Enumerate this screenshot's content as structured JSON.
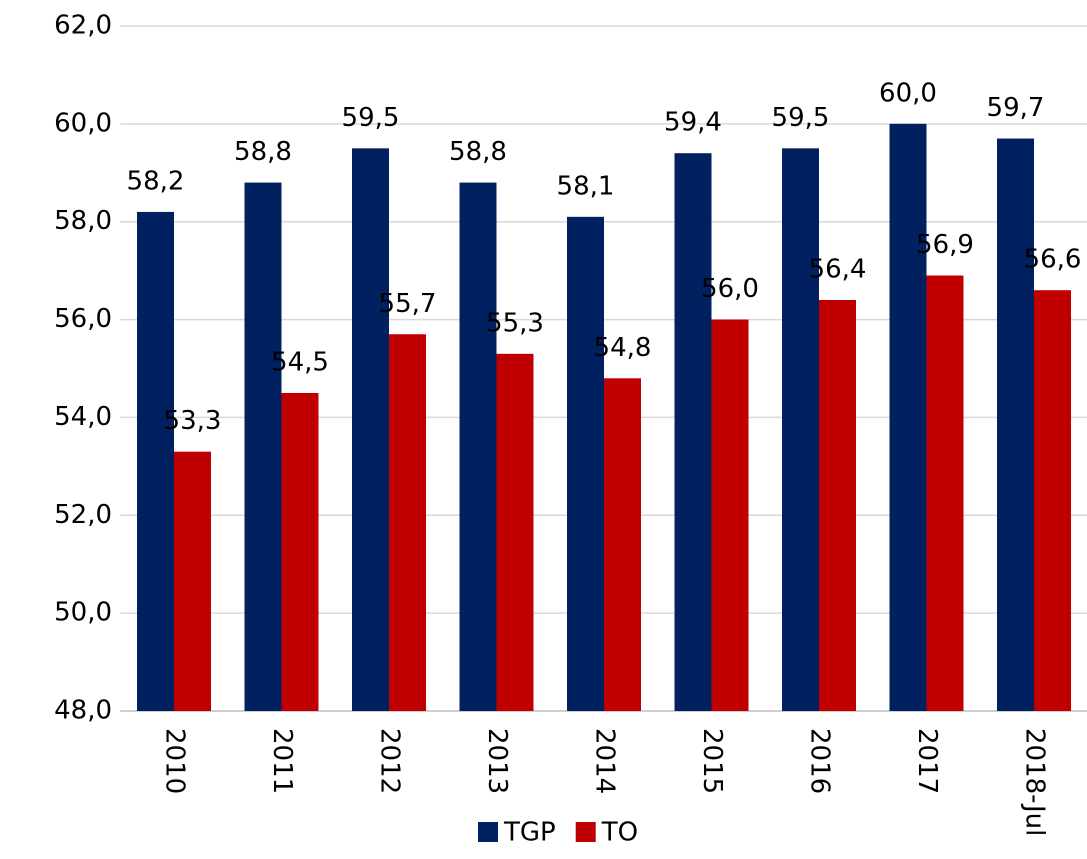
{
  "chart_data": {
    "type": "bar",
    "categories": [
      "2010",
      "2011",
      "2012",
      "2013",
      "2014",
      "2015",
      "2016",
      "2017",
      "2018-Jul"
    ],
    "series": [
      {
        "name": "TGP",
        "color": "#002060",
        "values": [
          58.2,
          58.8,
          59.5,
          58.8,
          58.1,
          59.4,
          59.5,
          60.0,
          59.7
        ],
        "value_labels": [
          "58,2",
          "58,8",
          "59,5",
          "58,8",
          "58,1",
          "59,4",
          "59,5",
          "60,0",
          "59,7"
        ]
      },
      {
        "name": "TO",
        "color": "#c00000",
        "values": [
          53.3,
          54.5,
          55.7,
          55.3,
          54.8,
          56.0,
          56.4,
          56.9,
          56.6
        ],
        "value_labels": [
          "53,3",
          "54,5",
          "55,7",
          "55,3",
          "54,8",
          "56,0",
          "56,4",
          "56,9",
          "56,6"
        ]
      }
    ],
    "ylim": [
      48,
      62
    ],
    "yticks": [
      {
        "value": 48,
        "label": "48,0"
      },
      {
        "value": 50,
        "label": "50,0"
      },
      {
        "value": 52,
        "label": "52,0"
      },
      {
        "value": 54,
        "label": "54,0"
      },
      {
        "value": 56,
        "label": "56,0"
      },
      {
        "value": 58,
        "label": "58,0"
      },
      {
        "value": 60,
        "label": "60,0"
      },
      {
        "value": 62,
        "label": "62,0"
      }
    ],
    "grid": true
  }
}
